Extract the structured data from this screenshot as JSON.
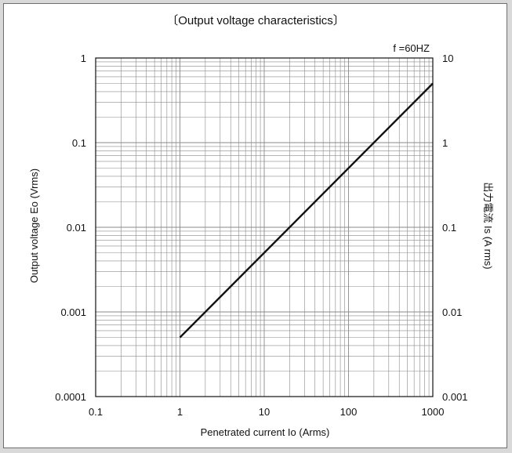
{
  "chart_data": {
    "type": "line",
    "title": "〔Output voltage characteristics〕",
    "annotation": "f =60HZ",
    "xlabel": "Penetrated current Io (Arms)",
    "ylabel": "Output voltage Eo (Vrms)",
    "y2label": "出力電流 Is (A rms)",
    "x_scale": "log",
    "y_scale": "log",
    "y2_scale": "log",
    "xlim": [
      0.1,
      1000
    ],
    "ylim": [
      0.0001,
      1
    ],
    "y2lim": [
      0.001,
      10
    ],
    "grid": true,
    "x_ticks": [
      "0.1",
      "1",
      "10",
      "100",
      "1000"
    ],
    "y_ticks": [
      "0.0001",
      "0.001",
      "0.01",
      "0.1",
      "1"
    ],
    "y2_ticks": [
      "0.001",
      "0.01",
      "0.1",
      "1",
      "10"
    ],
    "series": [
      {
        "x": [
          1,
          1000
        ],
        "y": [
          0.0005,
          0.5
        ]
      }
    ],
    "colors": {
      "line": "#111111",
      "grid": "#8a8a8a",
      "frame": "#6f6f6f"
    }
  }
}
